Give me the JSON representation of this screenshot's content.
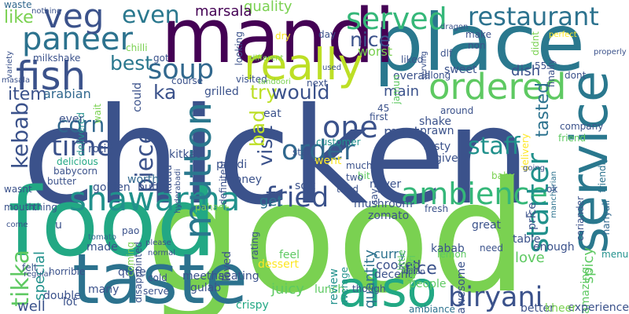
{
  "words": [
    {
      "text": "chicken"
    },
    {
      "text": "good"
    },
    {
      "text": "food"
    },
    {
      "text": "place"
    },
    {
      "text": "mandi"
    },
    {
      "text": "taste"
    },
    {
      "text": "service"
    },
    {
      "text": "paneer"
    },
    {
      "text": "also"
    },
    {
      "text": "ordered"
    },
    {
      "text": "really"
    },
    {
      "text": "fish"
    },
    {
      "text": "shawarma"
    },
    {
      "text": "restaurant"
    },
    {
      "text": "veg"
    },
    {
      "text": "soup"
    },
    {
      "text": "mutton"
    },
    {
      "text": "served"
    },
    {
      "text": "ambience"
    },
    {
      "text": "biryani"
    },
    {
      "text": "starter"
    },
    {
      "text": "fried"
    },
    {
      "text": "time"
    },
    {
      "text": "one"
    },
    {
      "text": "order"
    },
    {
      "text": "staff"
    },
    {
      "text": "corn"
    },
    {
      "text": "kebab"
    },
    {
      "text": "tikka"
    },
    {
      "text": "piece"
    },
    {
      "text": "even"
    },
    {
      "text": "best"
    },
    {
      "text": "nice"
    },
    {
      "text": "try"
    },
    {
      "text": "ka"
    },
    {
      "text": "would"
    },
    {
      "text": "visit"
    },
    {
      "text": "bad"
    },
    {
      "text": "tasted"
    },
    {
      "text": "item"
    },
    {
      "text": "like"
    },
    {
      "text": "quality"
    },
    {
      "text": "marsala"
    },
    {
      "text": "arabian"
    },
    {
      "text": "worst"
    },
    {
      "text": "main"
    },
    {
      "text": "special"
    },
    {
      "text": "must"
    },
    {
      "text": "get"
    },
    {
      "text": "also"
    },
    {
      "text": "well"
    },
    {
      "text": "crispy"
    },
    {
      "text": "juicy"
    },
    {
      "text": "rice"
    },
    {
      "text": "quantity"
    },
    {
      "text": "curry"
    },
    {
      "text": "cooked"
    },
    {
      "text": "decent"
    },
    {
      "text": "love"
    },
    {
      "text": "table"
    },
    {
      "text": "enough"
    },
    {
      "text": "spicy"
    },
    {
      "text": "amazing"
    },
    {
      "text": "awesome"
    },
    {
      "text": "experience"
    },
    {
      "text": "better"
    },
    {
      "text": "kheer"
    },
    {
      "text": "lunch"
    },
    {
      "text": "people"
    },
    {
      "text": "meetha"
    },
    {
      "text": "seating"
    },
    {
      "text": "gulab"
    },
    {
      "text": "dessert"
    },
    {
      "text": "review"
    },
    {
      "text": "average"
    },
    {
      "text": "feel"
    },
    {
      "text": "many"
    },
    {
      "text": "double"
    },
    {
      "text": "lot"
    },
    {
      "text": "quite"
    },
    {
      "text": "made"
    },
    {
      "text": "coming"
    },
    {
      "text": "rating"
    },
    {
      "text": "loved"
    },
    {
      "text": "buffet"
    },
    {
      "text": "golden"
    },
    {
      "text": "worth"
    },
    {
      "text": "money"
    },
    {
      "text": "soft"
    },
    {
      "text": "tried"
    },
    {
      "text": "never"
    },
    {
      "text": "mushroom"
    },
    {
      "text": "fresh"
    },
    {
      "text": "price"
    },
    {
      "text": "great"
    },
    {
      "text": "zomato"
    },
    {
      "text": "kabab"
    },
    {
      "text": "lemon"
    },
    {
      "text": "need"
    },
    {
      "text": "shake"
    },
    {
      "text": "tasty"
    },
    {
      "text": "give"
    },
    {
      "text": "went"
    },
    {
      "text": "bit"
    },
    {
      "text": "prawn"
    },
    {
      "text": "first"
    },
    {
      "text": "customer"
    },
    {
      "text": "friend"
    },
    {
      "text": "company"
    },
    {
      "text": "friendly"
    },
    {
      "text": "delivery"
    },
    {
      "text": "kitkat"
    },
    {
      "text": "papdi"
    },
    {
      "text": "roti"
    },
    {
      "text": "delicious"
    },
    {
      "text": "delivered"
    },
    {
      "text": "ever"
    },
    {
      "text": "could"
    },
    {
      "text": "grilled"
    },
    {
      "text": "eat"
    },
    {
      "text": "course"
    },
    {
      "text": "visited"
    },
    {
      "text": "got"
    },
    {
      "text": "milkshake"
    },
    {
      "text": "chilli"
    },
    {
      "text": "dish"
    },
    {
      "text": "finally"
    },
    {
      "text": "dont"
    },
    {
      "text": "55"
    },
    {
      "text": "overall"
    },
    {
      "text": "sweet"
    },
    {
      "text": "jamun"
    },
    {
      "text": "dlf"
    },
    {
      "text": "non"
    },
    {
      "text": "make"
    },
    {
      "text": "day"
    },
    {
      "text": "next"
    },
    {
      "text": "used"
    },
    {
      "text": "tandoori"
    },
    {
      "text": "different"
    },
    {
      "text": "liked"
    },
    {
      "text": "serving"
    },
    {
      "text": "dragon"
    },
    {
      "text": "perfect"
    },
    {
      "text": "properly"
    },
    {
      "text": "nothing"
    },
    {
      "text": "waste"
    },
    {
      "text": "variety"
    },
    {
      "text": "masala"
    },
    {
      "text": "wasnt"
    },
    {
      "text": "butter"
    },
    {
      "text": "baby"
    },
    {
      "text": "going"
    },
    {
      "text": "manchurian"
    },
    {
      "text": "hariyali"
    },
    {
      "text": "menu"
    },
    {
      "text": "coriander"
    },
    {
      "text": "ok"
    },
    {
      "text": "ki"
    },
    {
      "text": "say"
    },
    {
      "text": "little"
    },
    {
      "text": "lahori"
    },
    {
      "text": "though"
    },
    {
      "text": "indian"
    },
    {
      "text": "ambiance"
    },
    {
      "text": "horrible"
    },
    {
      "text": "felt"
    },
    {
      "text": "regular"
    },
    {
      "text": "tomato"
    },
    {
      "text": "pao"
    },
    {
      "text": "please"
    },
    {
      "text": "normal"
    },
    {
      "text": "cold"
    },
    {
      "text": "serve"
    },
    {
      "text": "disappointed"
    },
    {
      "text": "pahadi"
    },
    {
      "text": "thing"
    },
    {
      "text": "mouth"
    },
    {
      "text": "come"
    },
    {
      "text": "babycorn"
    },
    {
      "text": "kaddu"
    },
    {
      "text": "hyderabadi"
    },
    {
      "text": "definitely"
    },
    {
      "text": "star"
    },
    {
      "text": "two"
    },
    {
      "text": "45"
    },
    {
      "text": "around"
    },
    {
      "text": "along"
    },
    {
      "text": "looking"
    },
    {
      "text": "dry"
    },
    {
      "text": "didnt"
    },
    {
      "text": "wait"
    },
    {
      "text": "much"
    },
    {
      "text": "u"
    }
  ]
}
